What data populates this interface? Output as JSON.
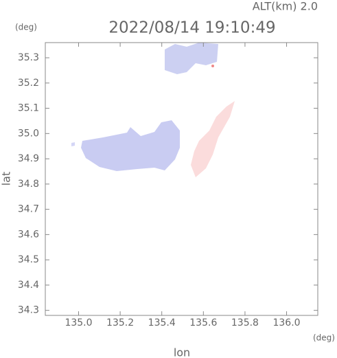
{
  "chart_data": {
    "type": "map",
    "title": "ALT(km) 2.0",
    "subtitle": "2022/08/14 19:10:49",
    "xlabel": "lon",
    "ylabel": "lat",
    "xunit": "(deg)",
    "yunit": "(deg)",
    "xlim": [
      134.84,
      136.15
    ],
    "ylim": [
      34.28,
      35.36
    ],
    "xticks": [
      {
        "value": 135,
        "label": "135.0"
      },
      135.2,
      135.4,
      135.6,
      135.8,
      {
        "value": 136,
        "label": "136.0"
      }
    ],
    "yticks": [
      34.3,
      34.4,
      34.5,
      34.6,
      34.7,
      34.8,
      34.9,
      {
        "value": 35,
        "label": "35.0"
      },
      35.1,
      35.2,
      35.3
    ]
  }
}
